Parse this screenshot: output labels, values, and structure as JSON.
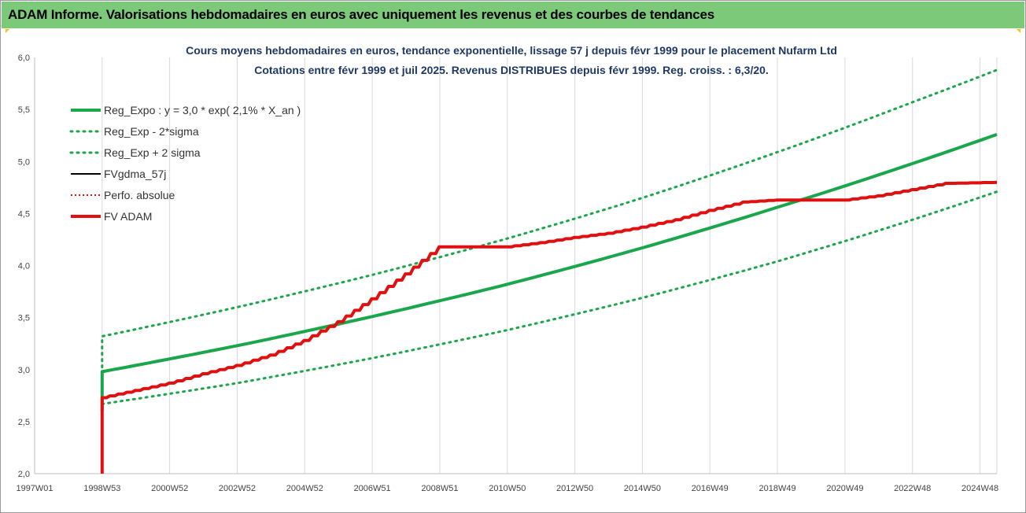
{
  "window": {
    "title": "ADAM Informe. Valorisations hebdomadaires en euros avec uniquement les revenus et des courbes de tendances"
  },
  "colors": {
    "title_bar": "#7cc97a",
    "reg_expo": "#1aa64a",
    "reg_band": "#1aa64a",
    "fvgdma": "#000000",
    "perfo": "#e01010",
    "fvadam": "#e01010",
    "grid": "#d9d9d9"
  },
  "chart_data": {
    "type": "line",
    "title_lines": [
      "Cours moyens hebdomadaires en euros, tendance exponentielle, lissage 57 j depuis févr 1999 pour le placement Nufarm Ltd",
      "Cotations entre févr 1999 et juil 2025.  Revenus DISTRIBUES depuis févr 1999.  Reg. croiss. : 6,3/20."
    ],
    "xlabel": "",
    "ylabel": "",
    "ylim": [
      2.0,
      6.0
    ],
    "xlim": [
      1997.0,
      2025.5
    ],
    "y_ticks": [
      "2,0",
      "2,5",
      "3,0",
      "3,5",
      "4,0",
      "4,5",
      "5,0",
      "5,5",
      "6,0"
    ],
    "y_tick_values": [
      2.0,
      2.5,
      3.0,
      3.5,
      4.0,
      4.5,
      5.0,
      5.5,
      6.0
    ],
    "x_ticks": [
      "1997W01",
      "1998W53",
      "2000W52",
      "2002W52",
      "2004W52",
      "2006W51",
      "2008W51",
      "2010W50",
      "2012W50",
      "2014W50",
      "2016W49",
      "2018W49",
      "2020W49",
      "2022W48",
      "2024W48"
    ],
    "x_tick_values": [
      1997.0,
      1999.0,
      2001.0,
      2003.0,
      2005.0,
      2007.0,
      2009.0,
      2011.0,
      2013.0,
      2015.0,
      2017.0,
      2019.0,
      2021.0,
      2023.0,
      2025.0
    ],
    "grid": "vertical",
    "legend_position": "top-left",
    "legend": [
      {
        "label": "Reg_Expo : y = 3,0 * exp( 2,1% *  X_an )",
        "style": "solid-thick",
        "color": "#1aa64a"
      },
      {
        "label": "Reg_Exp - 2*sigma",
        "style": "dotted",
        "color": "#1aa64a"
      },
      {
        "label": "Reg_Exp + 2 sigma",
        "style": "dotted",
        "color": "#1aa64a"
      },
      {
        "label": "FVgdma_57j",
        "style": "solid",
        "color": "#000000"
      },
      {
        "label": "Perfo. absolue",
        "style": "dotted",
        "color": "#e01010"
      },
      {
        "label": "FV ADAM",
        "style": "solid-thick",
        "color": "#e01010"
      }
    ],
    "series": [
      {
        "name": "Reg_Expo : y = 3,0 * exp( 2,1% *  X_an )",
        "x": [
          1999.0,
          1999.0,
          2003.0,
          2007.0,
          2011.0,
          2015.0,
          2019.0,
          2023.0,
          2025.5
        ],
        "values": [
          2.6,
          2.98,
          3.23,
          3.51,
          3.82,
          4.17,
          4.56,
          4.98,
          5.26
        ]
      },
      {
        "name": "Reg_Exp - 2*sigma",
        "x": [
          1999.0,
          2003.0,
          2007.0,
          2011.0,
          2015.0,
          2019.0,
          2023.0,
          2025.5
        ],
        "values": [
          2.67,
          2.87,
          3.11,
          3.38,
          3.69,
          4.04,
          4.44,
          4.71
        ]
      },
      {
        "name": "Reg_Exp + 2 sigma",
        "x": [
          1999.0,
          1999.0,
          2003.0,
          2007.0,
          2011.0,
          2015.0,
          2019.0,
          2023.0,
          2025.5
        ],
        "values": [
          2.6,
          3.32,
          3.6,
          3.91,
          4.26,
          4.65,
          5.09,
          5.57,
          5.88
        ]
      },
      {
        "name": "FVgdma_57j",
        "x": [
          1999.0,
          1999.0,
          2000.0,
          2001.0,
          2002.0,
          2003.0,
          2004.0,
          2005.0,
          2006.0,
          2007.0,
          2008.0,
          2009.0,
          2010.0,
          2011.0,
          2012.0,
          2013.0,
          2014.0,
          2015.0,
          2016.0,
          2017.0,
          2018.0,
          2019.0,
          2020.0,
          2021.0,
          2022.0,
          2023.0,
          2024.0,
          2025.5
        ],
        "values": [
          2.0,
          2.73,
          2.8,
          2.87,
          2.96,
          3.04,
          3.14,
          3.28,
          3.46,
          3.68,
          3.92,
          4.18,
          4.18,
          4.18,
          4.22,
          4.27,
          4.31,
          4.37,
          4.44,
          4.53,
          4.61,
          4.63,
          4.63,
          4.63,
          4.67,
          4.73,
          4.79,
          4.8
        ]
      },
      {
        "name": "Perfo. absolue",
        "x": [
          1999.0,
          1999.0,
          2000.0,
          2001.0,
          2002.0,
          2003.0,
          2004.0,
          2005.0,
          2006.0,
          2007.0,
          2008.0,
          2009.0,
          2010.0,
          2011.0,
          2012.0,
          2013.0,
          2014.0,
          2015.0,
          2016.0,
          2017.0,
          2018.0,
          2019.0,
          2020.0,
          2021.0,
          2022.0,
          2023.0,
          2024.0,
          2025.5
        ],
        "values": [
          2.0,
          2.73,
          2.8,
          2.87,
          2.96,
          3.04,
          3.14,
          3.28,
          3.46,
          3.68,
          3.92,
          4.18,
          4.18,
          4.18,
          4.22,
          4.27,
          4.31,
          4.37,
          4.44,
          4.53,
          4.61,
          4.63,
          4.63,
          4.63,
          4.67,
          4.73,
          4.79,
          4.8
        ]
      },
      {
        "name": "FV ADAM",
        "x": [
          1999.0,
          1999.0,
          2000.0,
          2001.0,
          2002.0,
          2003.0,
          2004.0,
          2005.0,
          2006.0,
          2007.0,
          2008.0,
          2009.0,
          2010.0,
          2011.0,
          2012.0,
          2013.0,
          2014.0,
          2015.0,
          2016.0,
          2017.0,
          2018.0,
          2019.0,
          2020.0,
          2021.0,
          2022.0,
          2023.0,
          2024.0,
          2025.5
        ],
        "values": [
          2.0,
          2.73,
          2.8,
          2.87,
          2.96,
          3.04,
          3.14,
          3.28,
          3.46,
          3.68,
          3.92,
          4.18,
          4.18,
          4.18,
          4.22,
          4.27,
          4.31,
          4.37,
          4.44,
          4.53,
          4.61,
          4.63,
          4.63,
          4.63,
          4.67,
          4.73,
          4.79,
          4.8
        ]
      }
    ]
  }
}
